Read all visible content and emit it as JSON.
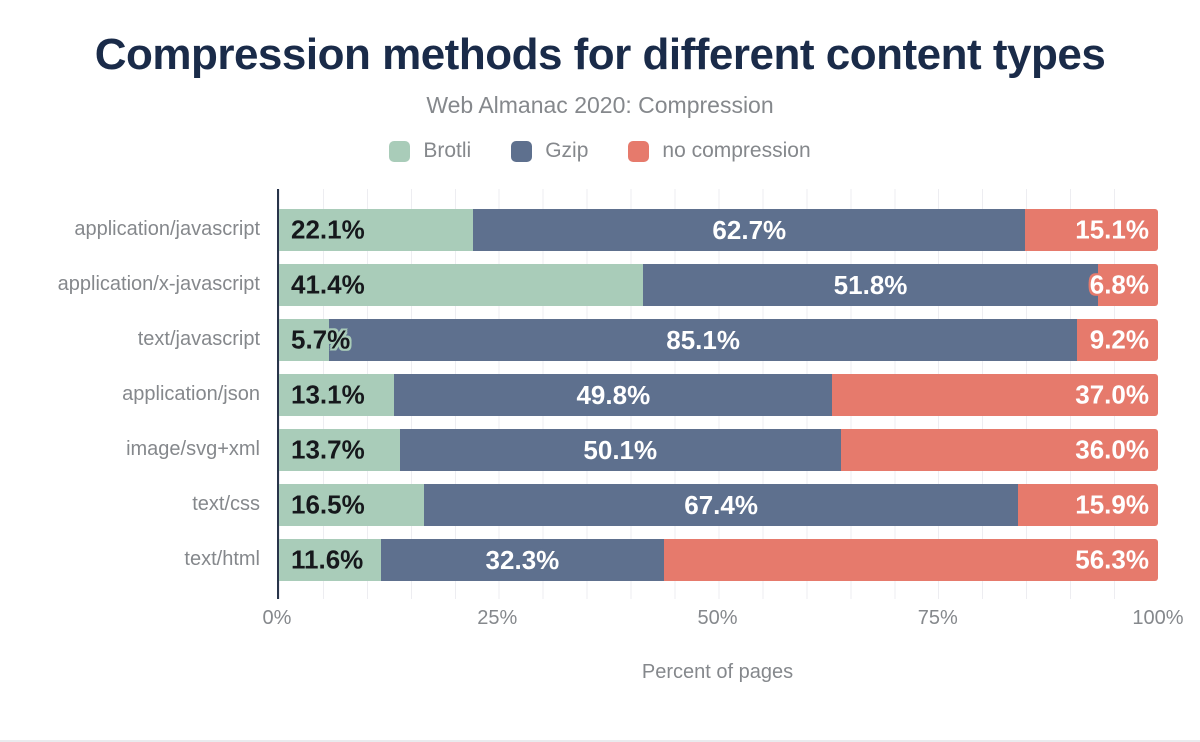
{
  "chart": {
    "title": "Compression methods for different content types",
    "subtitle": "Web Almanac 2020: Compression",
    "xlabel": "Percent of pages"
  },
  "colors": {
    "brotli": "#a9ccb9",
    "gzip": "#5e708e",
    "no_compression": "#e67a6c",
    "title_text": "#1a2b49",
    "muted_text": "#85888c",
    "axis_line": "#28344a",
    "gridline": "#ededf1",
    "value_label_dark": "#16181c",
    "value_label_light": "#ffffff"
  },
  "chart_data": {
    "type": "bar",
    "orientation": "horizontal",
    "stacked": true,
    "title": "Compression methods for different content types",
    "subtitle": "Web Almanac 2020: Compression",
    "xlabel": "Percent of pages",
    "xlim": [
      0,
      100
    ],
    "xticks": [
      "0%",
      "25%",
      "50%",
      "75%",
      "100%"
    ],
    "grid": "faint vertical lines every 5%",
    "legend_position": "top",
    "value_label_format": "0.0%",
    "categories": [
      "application/javascript",
      "application/x-javascript",
      "text/javascript",
      "application/json",
      "image/svg+xml",
      "text/css",
      "text/html"
    ],
    "series": [
      {
        "name": "Brotli",
        "color": "#a9ccb9",
        "values": [
          22.1,
          41.4,
          5.7,
          13.1,
          13.7,
          16.5,
          11.6
        ]
      },
      {
        "name": "Gzip",
        "color": "#5e708e",
        "values": [
          62.7,
          51.8,
          85.1,
          49.8,
          50.1,
          67.4,
          32.3
        ]
      },
      {
        "name": "no compression",
        "color": "#e67a6c",
        "values": [
          15.1,
          6.8,
          9.2,
          37.0,
          36.0,
          15.9,
          56.3
        ]
      }
    ]
  }
}
